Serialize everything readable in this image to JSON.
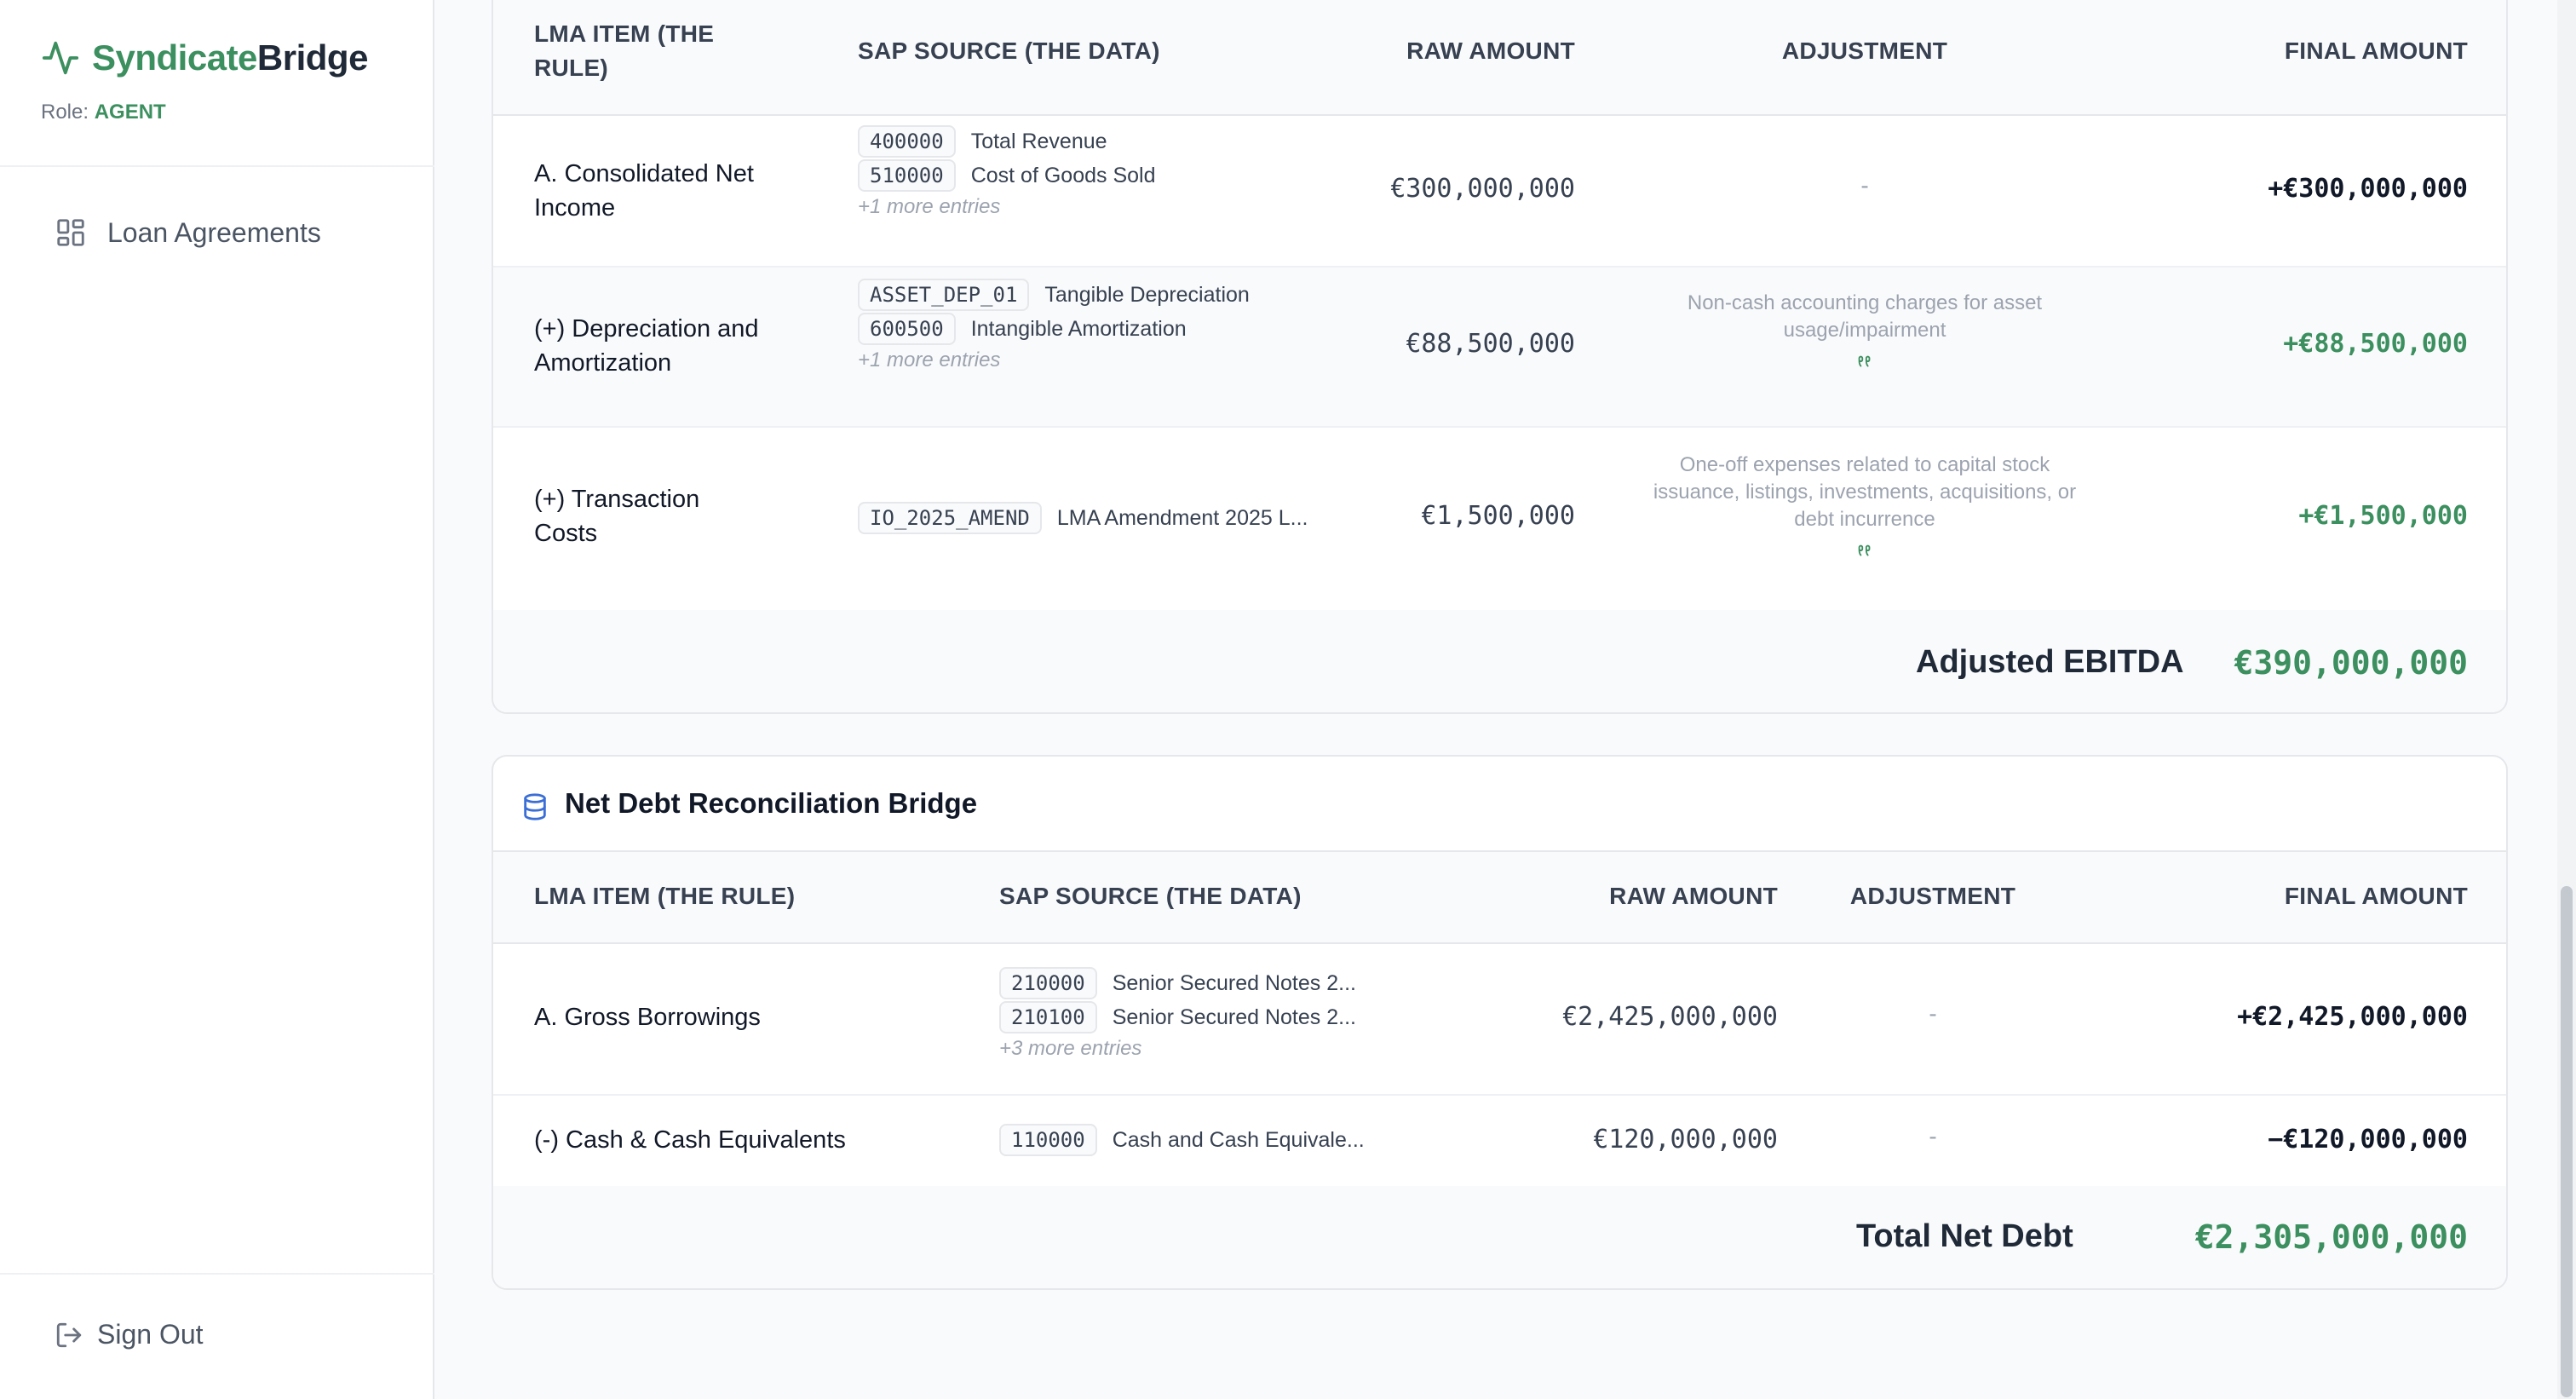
{
  "app": {
    "brand_part1": "Syndicate",
    "brand_part2": "Bridge",
    "role_label": "Role:",
    "role_value": "AGENT",
    "brand_color": "#3c8f5f"
  },
  "sidebar": {
    "items": [
      {
        "label": "Loan Agreements",
        "icon": "grid-layout-icon"
      }
    ],
    "sign_out_label": "Sign Out"
  },
  "ebitda_bridge": {
    "headers": {
      "lma": "LMA ITEM (THE RULE)",
      "sap": "SAP SOURCE (THE DATA)",
      "raw": "RAW AMOUNT",
      "adj": "ADJUSTMENT",
      "final": "FINAL AMOUNT"
    },
    "rows": [
      {
        "lma": "A. Consolidated Net Income",
        "sources": [
          {
            "code": "400000",
            "desc": "Total Revenue"
          },
          {
            "code": "510000",
            "desc": "Cost of Goods Sold"
          }
        ],
        "more": "+1 more entries",
        "raw": "€300,000,000",
        "adjustment": "-",
        "final": "+€300,000,000"
      },
      {
        "lma": "(+) Depreciation and Amortization",
        "sources": [
          {
            "code": "ASSET_DEP_01",
            "desc": "Tangible Depreciation"
          },
          {
            "code": "600500",
            "desc": "Intangible Amortization"
          }
        ],
        "more": "+1 more entries",
        "raw": "€88,500,000",
        "adjustment": "Non-cash accounting charges for asset usage/impairment",
        "final": "+€88,500,000"
      },
      {
        "lma": "(+) Transaction Costs",
        "sources": [
          {
            "code": "IO_2025_AMEND",
            "desc": "LMA Amendment 2025 L..."
          }
        ],
        "raw": "€1,500,000",
        "adjustment": "One-off expenses related to capital stock issuance, listings, investments, acquisitions, or debt incurrence",
        "final": "+€1,500,000"
      }
    ],
    "total_label": "Adjusted EBITDA",
    "total_value": "€390,000,000"
  },
  "net_debt_bridge": {
    "title": "Net Debt Reconciliation Bridge",
    "headers": {
      "lma": "LMA ITEM (THE RULE)",
      "sap": "SAP SOURCE (THE DATA)",
      "raw": "RAW AMOUNT",
      "adj": "ADJUSTMENT",
      "final": "FINAL AMOUNT"
    },
    "rows": [
      {
        "lma": "A. Gross Borrowings",
        "sources": [
          {
            "code": "210000",
            "desc": "Senior Secured Notes 2..."
          },
          {
            "code": "210100",
            "desc": "Senior Secured Notes 2..."
          }
        ],
        "more": "+3 more entries",
        "raw": "€2,425,000,000",
        "adjustment": "-",
        "final": "+€2,425,000,000"
      },
      {
        "lma": "(-) Cash & Cash Equivalents",
        "sources": [
          {
            "code": "110000",
            "desc": "Cash and Cash Equivale..."
          }
        ],
        "raw": "€120,000,000",
        "adjustment": "-",
        "final": "−€120,000,000"
      }
    ],
    "total_label": "Total Net Debt",
    "total_value": "€2,305,000,000"
  }
}
